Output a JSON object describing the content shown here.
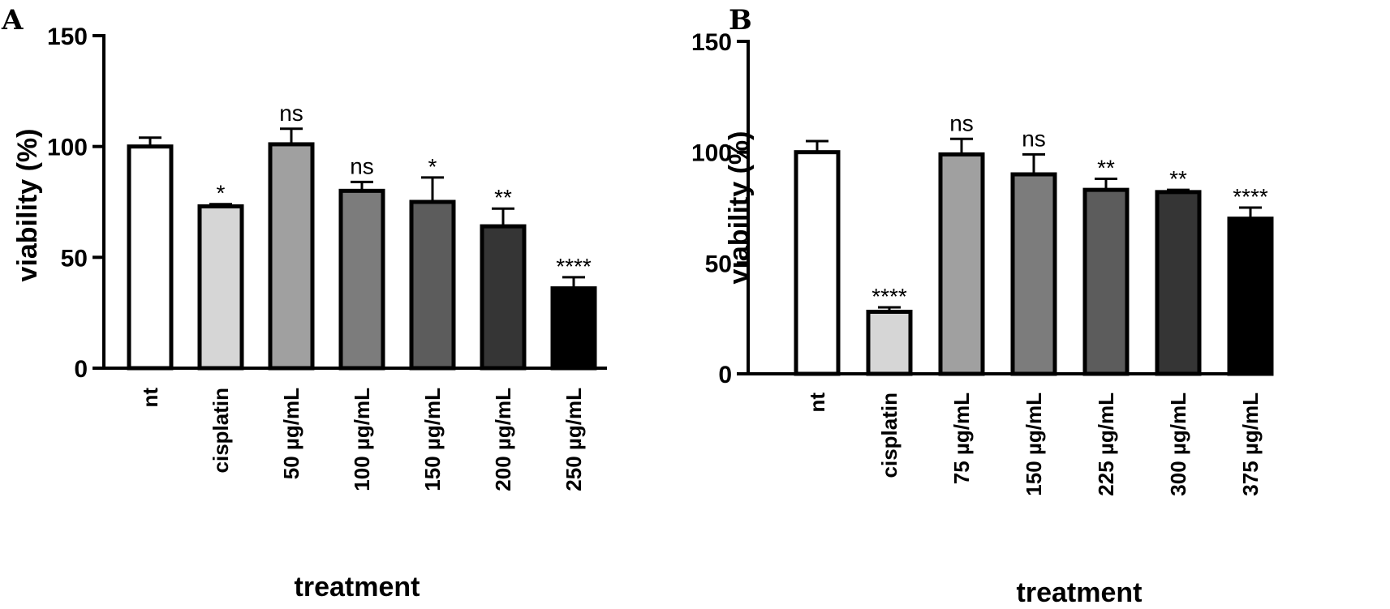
{
  "chart_data": [
    {
      "type": "bar",
      "panel": "A",
      "xlabel": "treatment",
      "ylabel": "viability (%)",
      "ylim": [
        0,
        150
      ],
      "yticks": [
        "0",
        "50",
        "100",
        "150"
      ],
      "categories": [
        "nt",
        "cisplatin",
        "50 µg/mL",
        "100 µg/mL",
        "150 µg/mL",
        "200 µg/mL",
        "250 µg/mL"
      ],
      "values": [
        100,
        73,
        101,
        80,
        75,
        64,
        36
      ],
      "errors": [
        4,
        1,
        7,
        4,
        11,
        8,
        5
      ],
      "significance": [
        "",
        "*",
        "ns",
        "ns",
        "*",
        "**",
        "****"
      ],
      "colors": [
        "#ffffff",
        "#d6d6d6",
        "#a0a0a0",
        "#7c7c7c",
        "#5c5c5c",
        "#353535",
        "#000000"
      ]
    },
    {
      "type": "bar",
      "panel": "B",
      "xlabel": "treatment",
      "ylabel": "viability (%)",
      "ylim": [
        0,
        150
      ],
      "yticks": [
        "0",
        "50",
        "100",
        "150"
      ],
      "categories": [
        "nt",
        "cisplatin",
        "75 µg/mL",
        "150 µg/mL",
        "225 µg/mL",
        "300 µg/mL",
        "375 µg/mL"
      ],
      "values": [
        100,
        28,
        99,
        90,
        83,
        82,
        70
      ],
      "errors": [
        5,
        2,
        7,
        9,
        5,
        1,
        5
      ],
      "significance": [
        "",
        "****",
        "ns",
        "ns",
        "**",
        "**",
        "****"
      ],
      "colors": [
        "#ffffff",
        "#d6d6d6",
        "#a0a0a0",
        "#7c7c7c",
        "#5c5c5c",
        "#353535",
        "#000000"
      ]
    }
  ]
}
